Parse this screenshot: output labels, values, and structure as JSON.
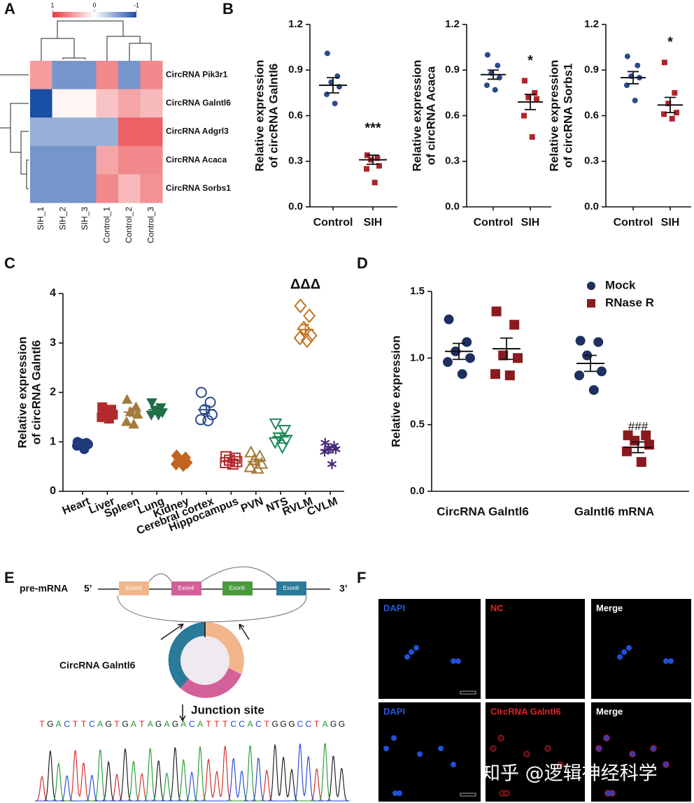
{
  "panel_labels": [
    "A",
    "B",
    "C",
    "D",
    "E",
    "F"
  ],
  "chart_data": [
    {
      "type": "heatmap",
      "rows": [
        "CircRNA Pik3r1",
        "CircRNA Galntl6",
        "CircRNA Adgrl3",
        "CircRNA Acaca",
        "CircRNA Sorbs1"
      ],
      "columns": [
        "SIH_1",
        "SIH_2",
        "SIH_3",
        "Control_1",
        "Control_2",
        "Control_3"
      ],
      "values": [
        [
          0.5,
          -0.6,
          -0.6,
          0.6,
          -0.6,
          0.6
        ],
        [
          -1,
          0.05,
          0.05,
          0.3,
          0.45,
          0.35
        ],
        [
          -0.45,
          -0.45,
          -0.45,
          -0.45,
          0.8,
          0.8
        ],
        [
          -0.6,
          -0.6,
          -0.6,
          0.45,
          0.6,
          0.6
        ],
        [
          -0.6,
          -0.6,
          -0.6,
          0.6,
          0.35,
          0.55
        ]
      ],
      "clim": [
        -1,
        1
      ],
      "cbar_ticks": [
        1,
        0,
        -1
      ],
      "colorscale": [
        "#1a4fa6",
        "#ffffff",
        "#e8383d"
      ]
    },
    {
      "type": "dotplot",
      "ylabel": [
        "Relative expression",
        "of circRNA Galntl6"
      ],
      "categories": [
        "Control",
        "SIH"
      ],
      "ylim": [
        0,
        1.2
      ],
      "yticks": [
        {
          "value": 0,
          "label": "0.0"
        },
        {
          "value": 0.3,
          "label": "0.3"
        },
        {
          "value": 0.6,
          "label": "0.6"
        },
        {
          "value": 0.9,
          "label": "0.9"
        },
        {
          "value": 1.2,
          "label": "1.2"
        }
      ],
      "groups": [
        {
          "values": [
            1.01,
            0.86,
            0.82,
            0.79,
            0.74,
            0.68
          ],
          "mean": 0.8,
          "sem": 0.05,
          "color": "#2b4a8c",
          "marker": "circle",
          "open": false
        },
        {
          "values": [
            0.34,
            0.32,
            0.31,
            0.27,
            0.25,
            0.16
          ],
          "mean": 0.31,
          "sem": 0.03,
          "color": "#b0252b",
          "marker": "square",
          "open": false,
          "annotation": "***"
        }
      ]
    },
    {
      "type": "dotplot",
      "ylabel": [
        "Relative expression",
        "of circRNA Acaca"
      ],
      "categories": [
        "Control",
        "SIH"
      ],
      "ylim": [
        0,
        1.2
      ],
      "yticks": [
        {
          "value": 0,
          "label": "0.0"
        },
        {
          "value": 0.3,
          "label": "0.3"
        },
        {
          "value": 0.6,
          "label": "0.6"
        },
        {
          "value": 0.9,
          "label": "0.9"
        },
        {
          "value": 1.2,
          "label": "1.2"
        }
      ],
      "groups": [
        {
          "values": [
            1.0,
            0.93,
            0.88,
            0.85,
            0.8,
            0.77
          ],
          "mean": 0.87,
          "sem": 0.03,
          "color": "#2b4a8c",
          "marker": "circle",
          "open": false
        },
        {
          "values": [
            0.83,
            0.75,
            0.72,
            0.71,
            0.6,
            0.46
          ],
          "mean": 0.69,
          "sem": 0.05,
          "color": "#b0252b",
          "marker": "square",
          "open": false,
          "annotation": "*"
        }
      ]
    },
    {
      "type": "dotplot",
      "ylabel": [
        "Relative expression",
        "of circRNA Sorbs1"
      ],
      "categories": [
        "Control",
        "SIH"
      ],
      "ylim": [
        0,
        1.2
      ],
      "yticks": [
        {
          "value": 0,
          "label": "0.0"
        },
        {
          "value": 0.3,
          "label": "0.3"
        },
        {
          "value": 0.6,
          "label": "0.6"
        },
        {
          "value": 0.9,
          "label": "0.9"
        },
        {
          "value": 1.2,
          "label": "1.2"
        }
      ],
      "groups": [
        {
          "values": [
            0.99,
            0.93,
            0.86,
            0.85,
            0.8,
            0.7
          ],
          "mean": 0.85,
          "sem": 0.04,
          "color": "#2b4a8c",
          "marker": "circle",
          "open": false
        },
        {
          "values": [
            0.95,
            0.75,
            0.68,
            0.62,
            0.61,
            0.58
          ],
          "mean": 0.67,
          "sem": 0.05,
          "color": "#b0252b",
          "marker": "square",
          "open": false,
          "annotation": "*"
        }
      ]
    },
    {
      "type": "dotplot",
      "ylabel": [
        "Relative expression",
        "of circRNA Galntl6"
      ],
      "categories": [
        "Heart",
        "Liver",
        "Spleen",
        "Lung",
        "Kidney",
        "Cerebral cortex",
        "Hippocampus",
        "PVN",
        "NTS",
        "RVLM",
        "CVLM"
      ],
      "ylim": [
        0,
        4
      ],
      "yticks": [
        0,
        1,
        2,
        3,
        4
      ],
      "groups": [
        {
          "values": [
            1.0,
            0.98,
            0.97,
            0.95,
            0.92,
            0.85
          ],
          "mean": 0.96,
          "sem": 0.02,
          "color": "#1f3a7a",
          "marker": "circle",
          "open": false
        },
        {
          "values": [
            1.7,
            1.65,
            1.6,
            1.55,
            1.5,
            1.47
          ],
          "mean": 1.58,
          "sem": 0.04,
          "color": "#b22a2e",
          "marker": "square",
          "open": false
        },
        {
          "values": [
            1.85,
            1.7,
            1.6,
            1.55,
            1.4,
            1.35
          ],
          "mean": 1.6,
          "sem": 0.08,
          "color": "#a47b3a",
          "marker": "triangle",
          "open": false
        },
        {
          "values": [
            1.8,
            1.7,
            1.65,
            1.6,
            1.55,
            1.55
          ],
          "mean": 1.65,
          "sem": 0.05,
          "color": "#1e6e46",
          "marker": "triangle-down",
          "open": false
        },
        {
          "values": [
            0.72,
            0.68,
            0.62,
            0.58,
            0.55,
            0.52
          ],
          "mean": 0.62,
          "sem": 0.03,
          "color": "#c2641e",
          "marker": "diamond",
          "open": false
        },
        {
          "values": [
            2.0,
            1.8,
            1.65,
            1.55,
            1.45,
            1.43
          ],
          "mean": 1.65,
          "sem": 0.08,
          "color": "#2a4a8a",
          "marker": "circle",
          "open": true
        },
        {
          "values": [
            0.7,
            0.67,
            0.63,
            0.6,
            0.58,
            0.55
          ],
          "mean": 0.62,
          "sem": 0.03,
          "color": "#b22a2e",
          "marker": "square",
          "open": true
        },
        {
          "values": [
            0.78,
            0.7,
            0.62,
            0.55,
            0.48,
            0.45
          ],
          "mean": 0.6,
          "sem": 0.05,
          "color": "#a47b3a",
          "marker": "triangle",
          "open": true
        },
        {
          "values": [
            1.38,
            1.25,
            1.1,
            1.05,
            1.0,
            0.9
          ],
          "mean": 1.1,
          "sem": 0.07,
          "color": "#1e8a5a",
          "marker": "triangle-down",
          "open": true
        },
        {
          "values": [
            3.75,
            3.55,
            3.3,
            3.15,
            3.1,
            3.05
          ],
          "mean": 3.27,
          "sem": 0.1,
          "color": "#c2741e",
          "marker": "diamond",
          "open": true,
          "annotation": "ΔΔΔ"
        },
        {
          "values": [
            0.98,
            0.92,
            0.88,
            0.85,
            0.8,
            0.55
          ],
          "mean": 0.84,
          "sem": 0.06,
          "color": "#4a2a7a",
          "marker": "asterisk",
          "open": false
        }
      ]
    },
    {
      "type": "grouped-dotplot",
      "ylabel": "Relative expression",
      "categories": [
        "CircRNA Galntl6",
        "Galntl6 mRNA"
      ],
      "ylim": [
        0,
        1.5
      ],
      "yticks": [
        {
          "value": 0,
          "label": "0.0"
        },
        {
          "value": 0.5,
          "label": "0.5"
        },
        {
          "value": 1,
          "label": "1.0"
        },
        {
          "value": 1.5,
          "label": "1.5"
        }
      ],
      "legend": "top-right",
      "series": [
        {
          "name": "Mock",
          "color": "#1f3060",
          "marker": "circle",
          "values": [
            [
              1.29,
              1.12,
              1.05,
              1.0,
              0.97,
              0.88
            ],
            [
              1.13,
              1.12,
              1.02,
              0.9,
              0.87,
              0.76
            ]
          ],
          "mean": [
            1.05,
            0.96
          ],
          "sem": [
            0.06,
            0.06
          ]
        },
        {
          "name": "RNase R",
          "color": "#8b1a1e",
          "marker": "square",
          "values": [
            [
              1.35,
              1.25,
              1.02,
              1.0,
              0.88,
              0.87
            ],
            [
              0.42,
              0.42,
              0.38,
              0.35,
              0.3,
              0.22
            ]
          ],
          "mean": [
            1.07,
            0.33
          ],
          "sem": [
            0.08,
            0.04
          ],
          "annotations": [
            null,
            "###"
          ]
        }
      ]
    }
  ],
  "diagram": {
    "pre_mrna": "pre-mRNA",
    "five_prime": "5’",
    "three_prime": "3’",
    "exons": [
      "Exon3",
      "Exon4",
      "Exon5",
      "Exon6"
    ],
    "circrna": "CircRNA Galntl6",
    "junction": "Junction site",
    "sequence": [
      "T",
      "G",
      "A",
      "C",
      "T",
      "T",
      "C",
      "A",
      "G",
      "T",
      "G",
      "A",
      "T",
      "A",
      "G",
      "A",
      "G",
      "A",
      "C",
      "A",
      "T",
      "T",
      "T",
      "C",
      "C",
      "A",
      "C",
      "T",
      "G",
      "G",
      "G",
      "C",
      "C",
      "T",
      "A",
      "G",
      "G"
    ]
  },
  "images": {
    "labels": [
      "DAPI",
      "NC",
      "Merge",
      "DAPI",
      "CircRNA Galntl6",
      "Merge"
    ]
  },
  "watermark": "知乎 @逻辑神经科学"
}
